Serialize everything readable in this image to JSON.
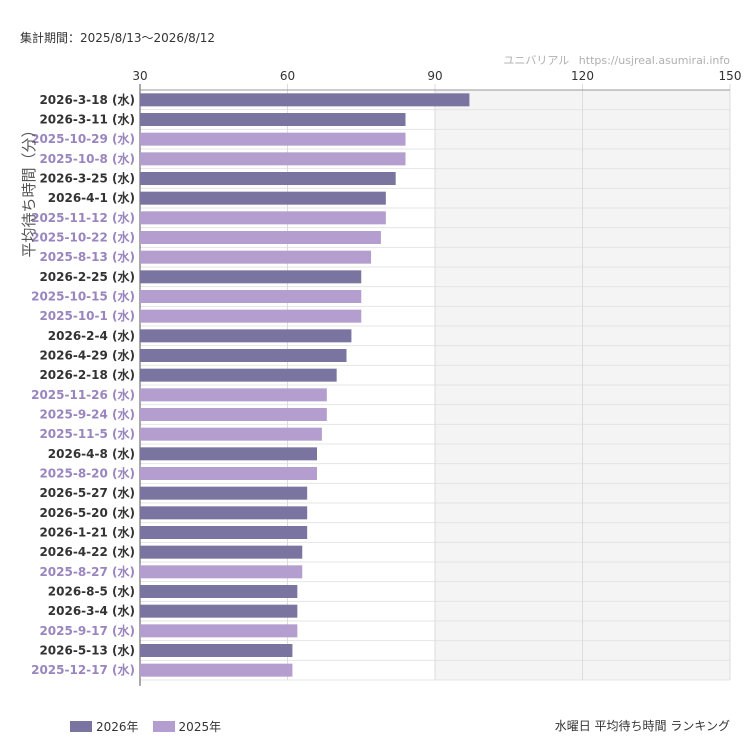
{
  "period_label": "集計期間：2025/8/13〜2026/8/12",
  "source": {
    "name": "ユニバリアル",
    "url": "https://usjreal.asumirai.info"
  },
  "footer_title": "水曜日 平均待ち時間 ランキング",
  "colors": {
    "2026": "#7a74a0",
    "2025": "#b49ecf",
    "label_2026": "#333333",
    "label_2025": "#9a85bf"
  },
  "chart_data": {
    "type": "bar",
    "orientation": "horizontal",
    "ylabel": "平均待ち時間（分）",
    "xlim": [
      30,
      150
    ],
    "ticks": [
      30,
      60,
      90,
      120,
      150
    ],
    "background_bands": [
      [
        90,
        120
      ],
      [
        120,
        150
      ]
    ],
    "legend": [
      "2026年",
      "2025年"
    ],
    "categories": [
      "2026-3-18 (水)",
      "2026-3-11 (水)",
      "2025-10-29 (水)",
      "2025-10-8 (水)",
      "2026-3-25 (水)",
      "2026-4-1 (水)",
      "2025-11-12 (水)",
      "2025-10-22 (水)",
      "2025-8-13 (水)",
      "2026-2-25 (水)",
      "2025-10-15 (水)",
      "2025-10-1 (水)",
      "2026-2-4 (水)",
      "2026-4-29 (水)",
      "2026-2-18 (水)",
      "2025-11-26 (水)",
      "2025-9-24 (水)",
      "2025-11-5 (水)",
      "2026-4-8 (水)",
      "2025-8-20 (水)",
      "2026-5-27 (水)",
      "2026-5-20 (水)",
      "2026-1-21 (水)",
      "2026-4-22 (水)",
      "2025-8-27 (水)",
      "2026-8-5 (水)",
      "2026-3-4 (水)",
      "2025-9-17 (水)",
      "2026-5-13 (水)",
      "2025-12-17 (水)"
    ],
    "values": [
      97,
      84,
      84,
      84,
      82,
      80,
      80,
      79,
      77,
      75,
      75,
      75,
      73,
      72,
      70,
      68,
      68,
      67,
      66,
      66,
      64,
      64,
      64,
      63,
      63,
      62,
      62,
      62,
      61,
      61
    ],
    "years": [
      "2026",
      "2026",
      "2025",
      "2025",
      "2026",
      "2026",
      "2025",
      "2025",
      "2025",
      "2026",
      "2025",
      "2025",
      "2026",
      "2026",
      "2026",
      "2025",
      "2025",
      "2025",
      "2026",
      "2025",
      "2026",
      "2026",
      "2026",
      "2026",
      "2025",
      "2026",
      "2026",
      "2025",
      "2026",
      "2025"
    ]
  }
}
